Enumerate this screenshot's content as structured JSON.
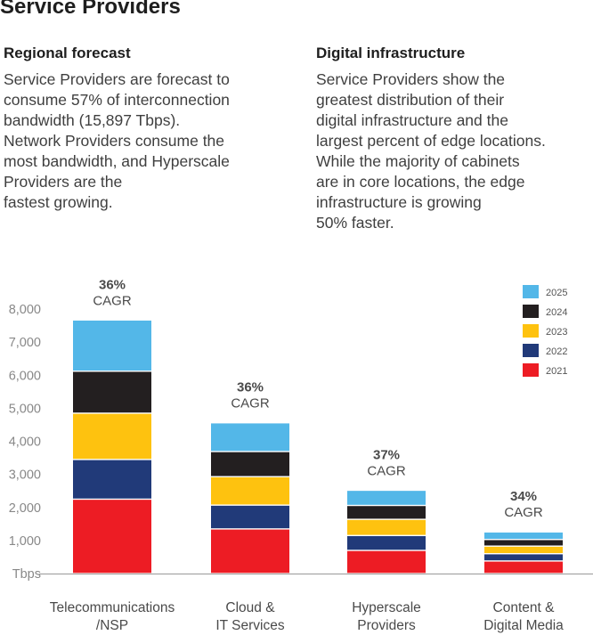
{
  "title": "Service Providers",
  "sections": {
    "left": {
      "heading": "Regional forecast",
      "body": "Service Providers are forecast to\nconsume 57% of interconnection\nbandwidth (15,897 Tbps).\nNetwork Providers consume the\nmost bandwidth, and Hyperscale\nProviders are the\nfastest growing."
    },
    "right": {
      "heading": "Digital infrastructure",
      "body": "Service Providers show the\ngreatest distribution of their\ndigital infrastructure and the\nlargest percent of edge locations.\nWhile the majority of cabinets\nare in core locations, the edge\ninfrastructure is growing\n50% faster."
    }
  },
  "chart_data": {
    "type": "bar",
    "stacked": true,
    "categories": [
      [
        "Telecommunications",
        "/NSP"
      ],
      [
        "Cloud &",
        "IT Services"
      ],
      [
        "Hyperscale",
        "Providers"
      ],
      [
        "Content &",
        "Digital Media"
      ]
    ],
    "series": [
      {
        "name": "2021",
        "color": "#ed1c24",
        "values": [
          2250,
          1350,
          700,
          380
        ]
      },
      {
        "name": "2022",
        "color": "#213a79",
        "values": [
          1200,
          720,
          450,
          220
        ]
      },
      {
        "name": "2023",
        "color": "#fec20f",
        "values": [
          1400,
          860,
          490,
          230
        ]
      },
      {
        "name": "2024",
        "color": "#231f20",
        "values": [
          1270,
          760,
          420,
          200
        ]
      },
      {
        "name": "2025",
        "color": "#53b7e8",
        "values": [
          1550,
          870,
          460,
          230
        ]
      }
    ],
    "annotations": [
      {
        "pct": "36%",
        "label": "CAGR"
      },
      {
        "pct": "36%",
        "label": "CAGR"
      },
      {
        "pct": "37%",
        "label": "CAGR"
      },
      {
        "pct": "34%",
        "label": "CAGR"
      }
    ],
    "y_ticks": [
      "Tbps",
      "1,000",
      "2,000",
      "3,000",
      "4,000",
      "5,000",
      "6,000",
      "7,000",
      "8,000"
    ],
    "ylim": [
      0,
      8000
    ],
    "legend_position": "top-right",
    "grid": false
  }
}
